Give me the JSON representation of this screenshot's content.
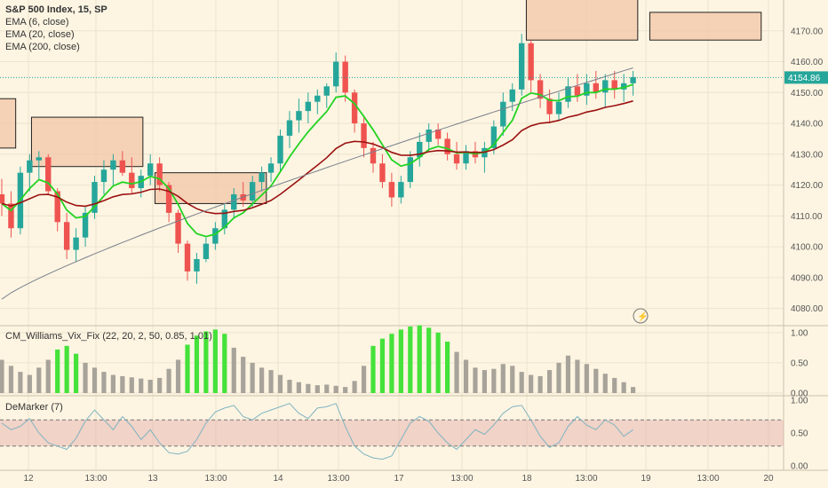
{
  "chart_data": [
    {
      "type": "candlestick",
      "title": "S&P 500 Index, 15, SP",
      "overlays": [
        "EMA (6, close)",
        "EMA (20, close)",
        "EMA (200, close)"
      ],
      "ylim": [
        4075,
        4180
      ],
      "y_ticks": [
        "4170.00",
        "4160.00",
        "4150.00",
        "4140.00",
        "4130.00",
        "4120.00",
        "4110.00",
        "4100.00",
        "4090.00",
        "4080.00"
      ],
      "last_price_label": "4154.86",
      "x_ticks": [
        "12",
        "13:00",
        "13",
        "13:00",
        "14",
        "13:00",
        "17",
        "13:00",
        "18",
        "13:00",
        "19",
        "13:00",
        "20"
      ],
      "ohlc": [
        [
          4117,
          4122,
          4110,
          4114
        ],
        [
          4114,
          4118,
          4103,
          4106
        ],
        [
          4106,
          4126,
          4104,
          4124
        ],
        [
          4124,
          4130,
          4118,
          4128
        ],
        [
          4128,
          4131,
          4122,
          4129
        ],
        [
          4129,
          4130,
          4117,
          4118
        ],
        [
          4118,
          4119,
          4105,
          4108
        ],
        [
          4108,
          4111,
          4096,
          4099
        ],
        [
          4099,
          4106,
          4095,
          4103
        ],
        [
          4103,
          4113,
          4100,
          4111
        ],
        [
          4111,
          4123,
          4109,
          4121
        ],
        [
          4121,
          4128,
          4117,
          4125
        ],
        [
          4125,
          4130,
          4120,
          4128
        ],
        [
          4128,
          4131,
          4123,
          4124
        ],
        [
          4124,
          4129,
          4117,
          4119
        ],
        [
          4119,
          4125,
          4116,
          4123
        ],
        [
          4123,
          4130,
          4120,
          4127
        ],
        [
          4127,
          4129,
          4118,
          4120
        ],
        [
          4120,
          4121,
          4108,
          4111
        ],
        [
          4111,
          4112,
          4098,
          4101
        ],
        [
          4101,
          4102,
          4089,
          4092
        ],
        [
          4092,
          4098,
          4088,
          4096
        ],
        [
          4096,
          4103,
          4095,
          4101
        ],
        [
          4101,
          4108,
          4099,
          4106
        ],
        [
          4106,
          4114,
          4104,
          4112
        ],
        [
          4112,
          4119,
          4109,
          4117
        ],
        [
          4117,
          4121,
          4113,
          4115
        ],
        [
          4115,
          4123,
          4113,
          4121
        ],
        [
          4121,
          4126,
          4118,
          4124
        ],
        [
          4124,
          4129,
          4121,
          4127
        ],
        [
          4127,
          4138,
          4124,
          4136
        ],
        [
          4136,
          4144,
          4132,
          4141
        ],
        [
          4141,
          4148,
          4137,
          4144
        ],
        [
          4144,
          4150,
          4140,
          4147
        ],
        [
          4147,
          4151,
          4143,
          4149
        ],
        [
          4149,
          4153,
          4145,
          4152
        ],
        [
          4152,
          4163,
          4150,
          4160
        ],
        [
          4160,
          4162,
          4147,
          4150
        ],
        [
          4150,
          4151,
          4137,
          4140
        ],
        [
          4140,
          4142,
          4129,
          4132
        ],
        [
          4132,
          4134,
          4124,
          4127
        ],
        [
          4127,
          4130,
          4119,
          4121
        ],
        [
          4121,
          4124,
          4113,
          4116
        ],
        [
          4116,
          4123,
          4114,
          4121
        ],
        [
          4121,
          4131,
          4119,
          4129
        ],
        [
          4129,
          4137,
          4126,
          4134
        ],
        [
          4134,
          4140,
          4131,
          4138
        ],
        [
          4138,
          4140,
          4133,
          4135
        ],
        [
          4135,
          4137,
          4128,
          4130
        ],
        [
          4130,
          4134,
          4125,
          4127
        ],
        [
          4127,
          4133,
          4125,
          4131
        ],
        [
          4131,
          4134,
          4127,
          4129
        ],
        [
          4129,
          4134,
          4124,
          4132
        ],
        [
          4132,
          4141,
          4130,
          4139
        ],
        [
          4139,
          4150,
          4136,
          4147
        ],
        [
          4147,
          4153,
          4144,
          4151
        ],
        [
          4151,
          4169,
          4149,
          4166
        ],
        [
          4166,
          4167,
          4150,
          4154
        ],
        [
          4154,
          4156,
          4145,
          4148
        ],
        [
          4148,
          4151,
          4140,
          4143
        ],
        [
          4143,
          4150,
          4141,
          4147
        ],
        [
          4147,
          4155,
          4145,
          4152
        ],
        [
          4152,
          4156,
          4147,
          4149
        ],
        [
          4149,
          4156,
          4146,
          4153
        ],
        [
          4153,
          4157,
          4148,
          4150
        ],
        [
          4150,
          4156,
          4145,
          4154
        ],
        [
          4154,
          4157,
          4148,
          4151
        ],
        [
          4151,
          4156,
          4147,
          4153
        ],
        [
          4153,
          4157,
          4149,
          4155
        ]
      ],
      "series": [
        {
          "name": "EMA (6, close)",
          "color": "#22d322"
        },
        {
          "name": "EMA (20, close)",
          "color": "#9b1212"
        },
        {
          "name": "EMA (200, close)",
          "color": "#7a7f8c",
          "values": [
            4083,
            4158
          ]
        }
      ],
      "candle_colors": {
        "up": "#26a69a",
        "down": "#ef5350"
      },
      "zones": [
        "resistance box",
        "resistance box",
        "resistance box",
        "resistance box",
        "resistance box",
        "resistance box"
      ]
    },
    {
      "type": "bar",
      "title": "CM_Williams_Vix_Fix (22, 20, 2, 50, 0.85, 1.01)",
      "ylim": [
        0,
        1.1
      ],
      "y_ticks": [
        "1.00",
        "0.50",
        "0.00"
      ],
      "colors": {
        "signal": "#44e23a",
        "normal": "#a8a39a"
      },
      "values": [
        0.55,
        0.45,
        0.35,
        0.3,
        0.42,
        0.55,
        0.72,
        0.78,
        0.65,
        0.5,
        0.42,
        0.35,
        0.3,
        0.28,
        0.26,
        0.24,
        0.22,
        0.25,
        0.4,
        0.55,
        0.8,
        0.95,
        1.02,
        1.05,
        0.98,
        0.75,
        0.6,
        0.5,
        0.42,
        0.38,
        0.3,
        0.22,
        0.18,
        0.15,
        0.13,
        0.14,
        0.12,
        0.1,
        0.2,
        0.45,
        0.78,
        0.9,
        0.98,
        1.05,
        1.1,
        1.12,
        1.08,
        1.0,
        0.85,
        0.68,
        0.55,
        0.42,
        0.38,
        0.4,
        0.48,
        0.45,
        0.35,
        0.3,
        0.28,
        0.38,
        0.5,
        0.62,
        0.55,
        0.48,
        0.4,
        0.32,
        0.25,
        0.18,
        0.1
      ],
      "signals": [
        6,
        7,
        8,
        20,
        21,
        22,
        23,
        24,
        40,
        41,
        42,
        43,
        44,
        45,
        46,
        47,
        48
      ]
    },
    {
      "type": "line",
      "title": "DeMarker (7)",
      "ylim": [
        0,
        1
      ],
      "y_ticks": [
        "1.00",
        "0.50",
        "0.00"
      ],
      "band": [
        0.3,
        0.7
      ],
      "color": "#7fb3c2",
      "values": [
        0.65,
        0.55,
        0.6,
        0.72,
        0.5,
        0.35,
        0.3,
        0.25,
        0.42,
        0.68,
        0.85,
        0.7,
        0.55,
        0.75,
        0.6,
        0.4,
        0.55,
        0.35,
        0.2,
        0.18,
        0.22,
        0.4,
        0.65,
        0.82,
        0.88,
        0.92,
        0.75,
        0.7,
        0.8,
        0.85,
        0.9,
        0.95,
        0.8,
        0.72,
        0.88,
        0.9,
        0.95,
        0.6,
        0.3,
        0.18,
        0.12,
        0.1,
        0.15,
        0.4,
        0.65,
        0.75,
        0.68,
        0.5,
        0.35,
        0.25,
        0.4,
        0.55,
        0.48,
        0.62,
        0.8,
        0.9,
        0.92,
        0.7,
        0.45,
        0.28,
        0.35,
        0.6,
        0.75,
        0.62,
        0.55,
        0.7,
        0.62,
        0.45,
        0.55
      ]
    }
  ]
}
